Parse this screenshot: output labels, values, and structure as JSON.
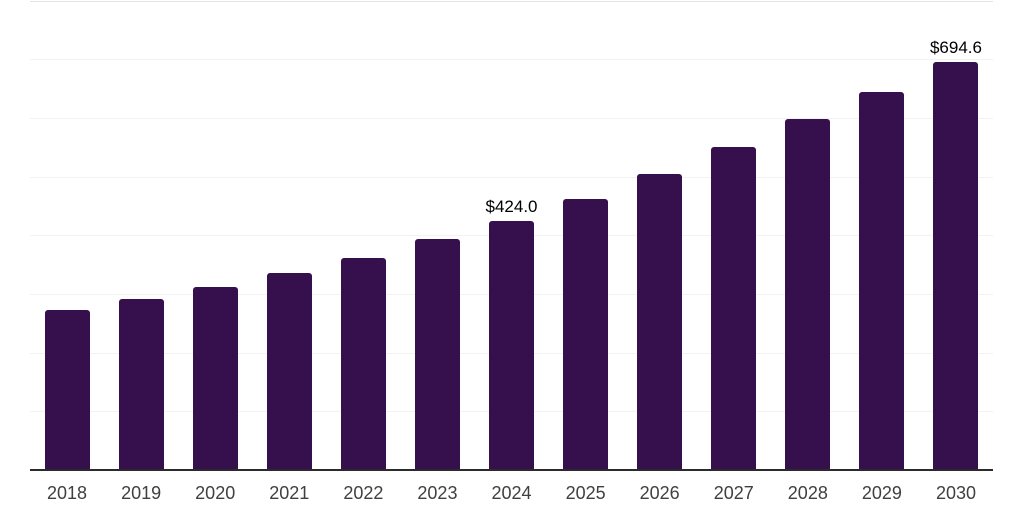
{
  "chart_data": {
    "type": "bar",
    "title": "",
    "xlabel": "",
    "ylabel": "",
    "categories": [
      "2018",
      "2019",
      "2020",
      "2021",
      "2022",
      "2023",
      "2024",
      "2025",
      "2026",
      "2027",
      "2028",
      "2029",
      "2030"
    ],
    "values": [
      273,
      292,
      312,
      336,
      361,
      393,
      424.0,
      461,
      505,
      551,
      598,
      644,
      694.6
    ],
    "data_labels": {
      "2024": "$424.0",
      "2030": "$694.6"
    },
    "ylim": [
      0,
      800
    ],
    "grid_step": 100,
    "grid": "horizontal gridlines every 100, no y-axis tick labels",
    "legend": "none",
    "colors": {
      "bar": "#36104D",
      "axis_line": "#2B2B2B",
      "gridline": "#F2F2F2",
      "top_border": "#E3E3E3",
      "tick_label": "#404040",
      "data_label": "#000000"
    }
  }
}
